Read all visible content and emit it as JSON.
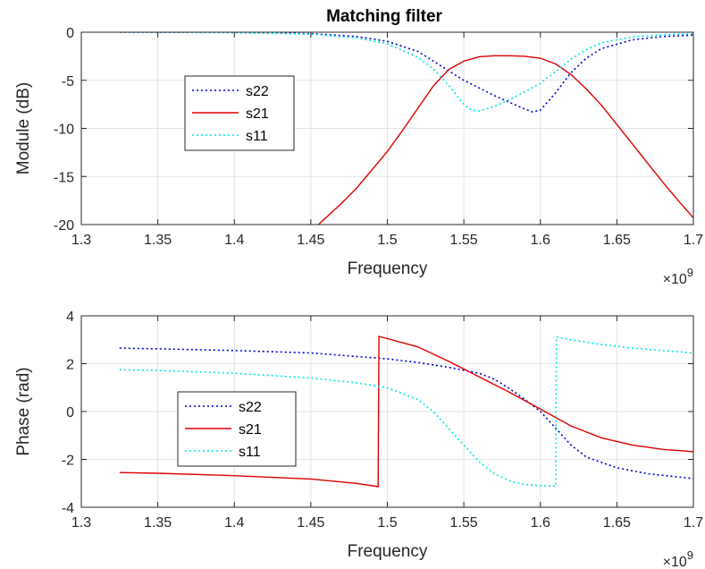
{
  "chart_data": [
    {
      "type": "line",
      "title": "Matching filter",
      "xlabel": "Frequency",
      "ylabel": "Module (dB)",
      "x_multiplier_label": "×10",
      "x_multiplier_exp": "9",
      "xlim": [
        1.3,
        1.7
      ],
      "ylim": [
        -20,
        0
      ],
      "xticks": [
        "1.3",
        "1.35",
        "1.4",
        "1.45",
        "1.5",
        "1.55",
        "1.6",
        "1.65",
        "1.7"
      ],
      "yticks": [
        "-20",
        "-15",
        "-10",
        "-5",
        "0"
      ],
      "grid": true,
      "legend_position": "left",
      "series": [
        {
          "name": "s22",
          "color": "#0000cc",
          "style": "dotted",
          "x": [
            1.325,
            1.35,
            1.4,
            1.45,
            1.48,
            1.5,
            1.52,
            1.54,
            1.55,
            1.56,
            1.57,
            1.58,
            1.59,
            1.595,
            1.6,
            1.61,
            1.62,
            1.63,
            1.64,
            1.66,
            1.68,
            1.7
          ],
          "y": [
            0,
            0,
            -0.03,
            -0.15,
            -0.45,
            -0.95,
            -2.0,
            -4.0,
            -5.0,
            -5.8,
            -6.6,
            -7.3,
            -8.0,
            -8.3,
            -8.1,
            -6.3,
            -4.2,
            -2.7,
            -1.7,
            -0.8,
            -0.45,
            -0.3
          ]
        },
        {
          "name": "s21",
          "color": "#dd0000",
          "style": "solid",
          "x": [
            1.455,
            1.47,
            1.48,
            1.49,
            1.5,
            1.51,
            1.52,
            1.53,
            1.54,
            1.55,
            1.56,
            1.57,
            1.58,
            1.59,
            1.6,
            1.61,
            1.62,
            1.63,
            1.64,
            1.65,
            1.66,
            1.67,
            1.68,
            1.69,
            1.7
          ],
          "y": [
            -20,
            -17.8,
            -16.2,
            -14.3,
            -12.4,
            -10.2,
            -7.9,
            -5.6,
            -3.9,
            -3.0,
            -2.55,
            -2.45,
            -2.45,
            -2.5,
            -2.7,
            -3.3,
            -4.4,
            -5.9,
            -7.6,
            -9.6,
            -11.6,
            -13.6,
            -15.6,
            -17.5,
            -19.3
          ]
        },
        {
          "name": "s11",
          "color": "#00e5e5",
          "style": "dotted",
          "x": [
            1.325,
            1.35,
            1.4,
            1.45,
            1.48,
            1.5,
            1.52,
            1.53,
            1.54,
            1.55,
            1.555,
            1.56,
            1.57,
            1.58,
            1.59,
            1.6,
            1.61,
            1.62,
            1.63,
            1.64,
            1.66,
            1.68,
            1.7
          ],
          "y": [
            0,
            0,
            -0.05,
            -0.2,
            -0.6,
            -1.2,
            -2.6,
            -3.8,
            -5.5,
            -7.5,
            -8.1,
            -8.2,
            -7.7,
            -7.0,
            -6.2,
            -5.3,
            -4.1,
            -2.8,
            -1.8,
            -1.1,
            -0.5,
            -0.25,
            -0.15
          ]
        }
      ]
    },
    {
      "type": "line",
      "title": "",
      "xlabel": "Frequency",
      "ylabel": "Phase (rad)",
      "x_multiplier_label": "×10",
      "x_multiplier_exp": "9",
      "xlim": [
        1.3,
        1.7
      ],
      "ylim": [
        -4,
        4
      ],
      "xticks": [
        "1.3",
        "1.35",
        "1.4",
        "1.45",
        "1.5",
        "1.55",
        "1.6",
        "1.65",
        "1.7"
      ],
      "yticks": [
        "-4",
        "-2",
        "0",
        "2",
        "4"
      ],
      "grid": true,
      "legend_position": "left",
      "series": [
        {
          "name": "s22",
          "color": "#0000cc",
          "style": "dotted",
          "x": [
            1.325,
            1.35,
            1.4,
            1.45,
            1.5,
            1.52,
            1.54,
            1.56,
            1.57,
            1.58,
            1.59,
            1.6,
            1.61,
            1.62,
            1.63,
            1.65,
            1.67,
            1.7
          ],
          "y": [
            2.65,
            2.62,
            2.55,
            2.45,
            2.2,
            2.05,
            1.85,
            1.6,
            1.35,
            0.95,
            0.5,
            0.0,
            -0.7,
            -1.4,
            -1.9,
            -2.35,
            -2.6,
            -2.8
          ]
        },
        {
          "name": "s21",
          "color": "#dd0000",
          "style": "solid",
          "x": [
            1.325,
            1.35,
            1.4,
            1.45,
            1.48,
            1.494,
            1.4945,
            1.5,
            1.52,
            1.54,
            1.56,
            1.58,
            1.6,
            1.62,
            1.64,
            1.66,
            1.68,
            1.7
          ],
          "y": [
            -2.55,
            -2.58,
            -2.68,
            -2.82,
            -3.0,
            -3.14,
            3.14,
            3.05,
            2.7,
            2.1,
            1.45,
            0.8,
            0.1,
            -0.6,
            -1.1,
            -1.4,
            -1.58,
            -1.68
          ]
        },
        {
          "name": "s11",
          "color": "#00e5e5",
          "style": "dotted",
          "x": [
            1.325,
            1.35,
            1.4,
            1.45,
            1.48,
            1.5,
            1.52,
            1.53,
            1.54,
            1.55,
            1.56,
            1.57,
            1.58,
            1.59,
            1.6,
            1.61,
            1.6105,
            1.62,
            1.64,
            1.66,
            1.68,
            1.7
          ],
          "y": [
            1.75,
            1.72,
            1.6,
            1.4,
            1.2,
            1.0,
            0.5,
            0.0,
            -0.7,
            -1.4,
            -2.1,
            -2.6,
            -2.9,
            -3.05,
            -3.1,
            -3.12,
            3.12,
            3.0,
            2.8,
            2.65,
            2.55,
            2.45
          ]
        }
      ]
    }
  ]
}
